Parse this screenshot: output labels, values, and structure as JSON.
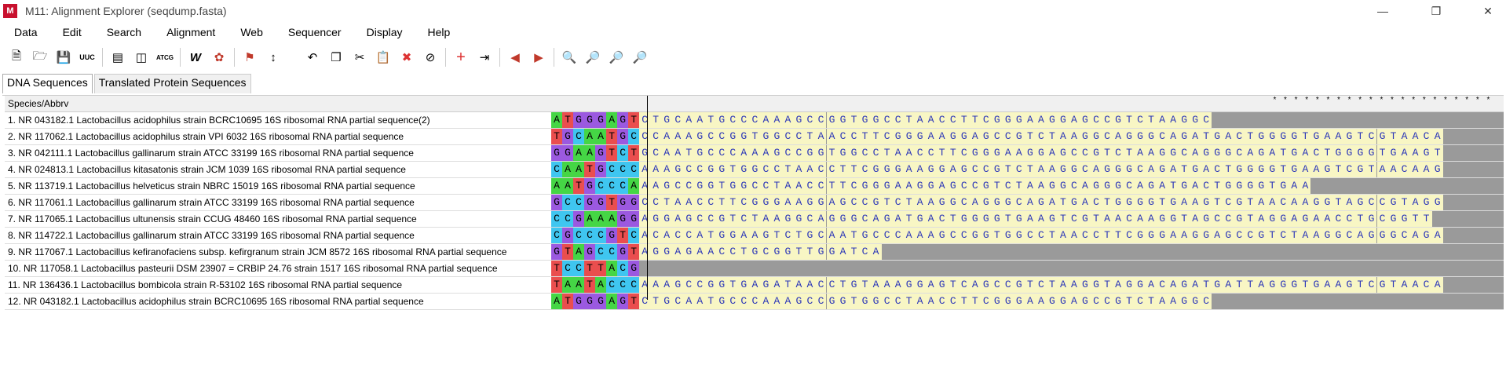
{
  "window": {
    "title": "M11: Alignment Explorer (seqdump.fasta)",
    "logo": "M"
  },
  "menu": [
    "Data",
    "Edit",
    "Search",
    "Alignment",
    "Web",
    "Sequencer",
    "Display",
    "Help"
  ],
  "toolbar_icons": [
    "new-file-icon",
    "open-folder-icon",
    "save-icon",
    "uuc-icon",
    "translate-icon",
    "split-icon",
    "atcg-icon",
    "w-icon",
    "muscle-icon",
    "flag-icon",
    "sort-icon",
    "undo-icon",
    "copy-icon",
    "cut-icon",
    "paste-icon",
    "delete-icon",
    "clear-icon",
    "add-icon",
    "export-icon",
    "prev-icon",
    "next-icon",
    "find-icon",
    "find-prev-icon",
    "find-next-icon",
    "find-all-icon"
  ],
  "tabs": [
    "DNA Sequences",
    "Translated Protein Sequences"
  ],
  "table": {
    "header": "Species/Abbrv",
    "rows": [
      "1. NR 043182.1 Lactobacillus acidophilus strain BCRC10695 16S ribosomal RNA partial sequence(2)",
      "2. NR 117062.1 Lactobacillus acidophilus strain VPI 6032 16S ribosomal RNA partial sequence",
      "3. NR 042111.1 Lactobacillus gallinarum strain ATCC 33199 16S ribosomal RNA partial sequence",
      "4. NR 024813.1 Lactobacillus kitasatonis strain JCM 1039 16S ribosomal RNA partial sequence",
      "5. NR 113719.1 Lactobacillus helveticus strain NBRC 15019 16S ribosomal RNA partial sequence",
      "6. NR 117061.1 Lactobacillus gallinarum strain ATCC 33199 16S ribosomal RNA partial sequence",
      "7. NR 117065.1 Lactobacillus ultunensis strain CCUG 48460 16S ribosomal RNA partial sequence",
      "8. NR 114722.1 Lactobacillus gallinarum strain ATCC 33199 16S ribosomal RNA partial sequence",
      "9. NR 117067.1 Lactobacillus kefiranofaciens subsp. kefirgranum strain JCM 8572 16S ribosomal RNA partial sequence",
      "10. NR 117058.1 Lactobacillus pasteurii DSM 23907 = CRBIP 24.76 strain 1517 16S ribosomal RNA partial sequence",
      "11. NR 136436.1 Lactobacillus bombicola strain R-53102 16S ribosomal RNA partial sequence",
      "12. NR 043182.1 Lactobacillus acidophilus strain BCRC10695 16S ribosomal RNA partial sequence"
    ]
  },
  "sequences": [
    "ATGGGAGTCTGCAATGCCCAAAGCCGGTGGCCTAACCTTCGGGAAGGAGCCGTCTAAGGC",
    "TGCAATGCCCAAAGCCGGTGGCCTAACCTTCGGGAAGGAGCCGTCTAAGGCAGGGCAGATGACTGGGGTGAAGTCGTAACA",
    "GGAAGTCTGCAATGCCCAAAGCCGGTGGCCTAACCTTCGGGAAGGAGCCGTCTAAGGCAGGGCAGATGACTGGGGTGAAGT",
    "CAATGCCCAAAGCCGGTGGCCTAACCTTCGGGAAGGAGCCGTCTAAGGCAGGGCAGATGACTGGGGTGAAGTCGTAACAAG",
    "AATGCCCAAAGCCGGTGGCCTAACCTTCGGGAAGGAGCCGTCTAAGGCAGGGCAGATGACTGGGGTGAA",
    "GCCGGTGGCCTAACCTTCGGGAAGGAGCCGTCTAAGGCAGGGCAGATGACTGGGGTGAAGTCGTAACAAGGTAGCCGTAGG",
    "CCGAAAGGAGGAGCCGTCTAAGGCAGGGCAGATGACTGGGGTGAAGTCGTAACAAGGTAGCCGTAGGAGAACCTGCGGTT",
    "CGCCCGTCACACCATGGAAGTCTGCAATGCCCAAAGCCGGTGGCCTAACCTTCGGGAAGGAGCCGTCTAAGGCAGGGCAGA",
    "GTAGCCGTAGGAGAACCTGCGGTTGGATCA",
    "TCCTTACG",
    "TAATACCCAAAGCCGGTGAGATAACCTGTAAAGGAGTCAGCCGTCTAAGGTAGGACAGATGATTAGGGTGAAGTCGTAACA",
    "ATGGGAGTCTGCAATGCCCAAAGCCGGTGGCCTAACCTTCGGGAAGGAGCCGTCTAAGGC"
  ],
  "consensus": [
    "*",
    "*",
    "*",
    "*",
    "*",
    "*",
    "*",
    "*",
    "*",
    "*",
    "*",
    "*",
    "*",
    "*",
    "*",
    "*",
    "*",
    "*",
    "*",
    "*",
    "*"
  ]
}
